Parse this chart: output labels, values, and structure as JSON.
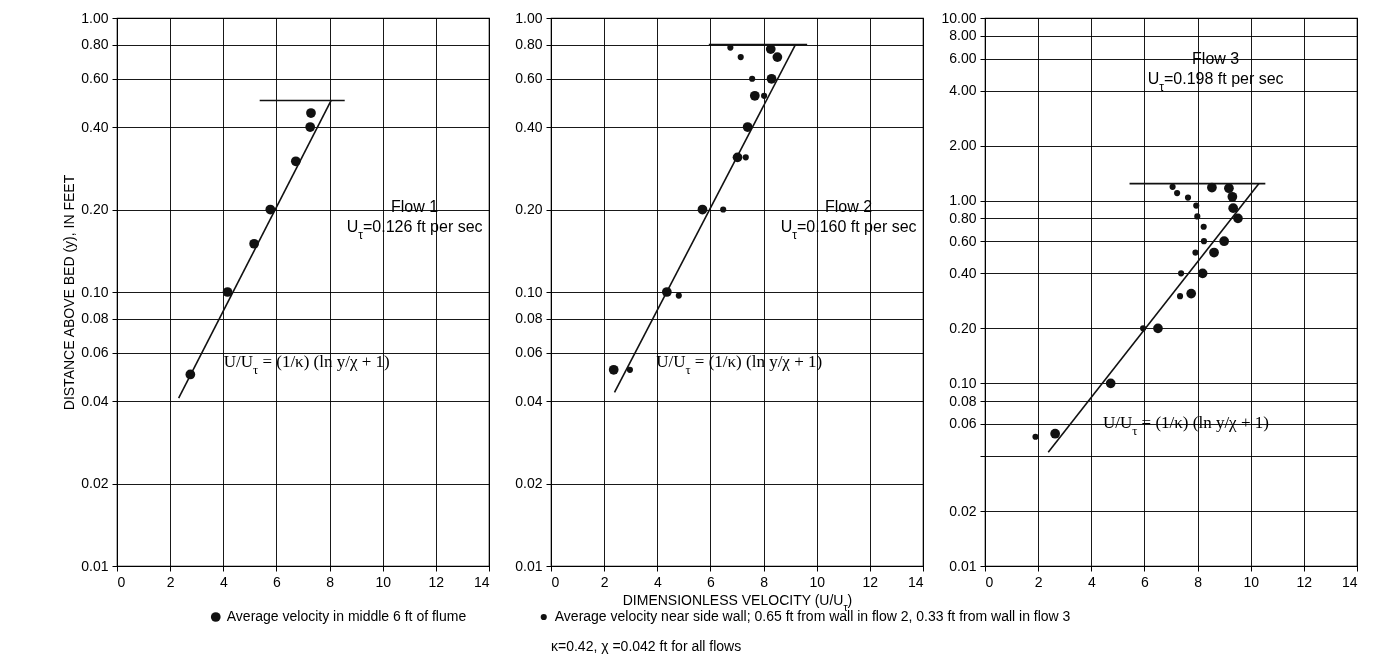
{
  "chart_data": [
    {
      "type": "scatter",
      "title": "Flow 1",
      "subtitle": "U$_{τ}$=0.126 ft per sec",
      "ylabel": "DISTANCE ABOVE BED (y), IN FEET",
      "xlim": [
        0,
        14
      ],
      "xticks": [
        0,
        2,
        4,
        6,
        8,
        10,
        12,
        14
      ],
      "ylim": [
        0.01,
        1
      ],
      "yticks": [
        0.01,
        0.02,
        0.04,
        0.06,
        0.08,
        {
          "value": 0.1,
          "label": "0.10"
        },
        {
          "value": 0.2,
          "label": "0.20"
        },
        {
          "value": 0.4,
          "label": "0.40"
        },
        {
          "value": 0.6,
          "label": "0.60"
        },
        {
          "value": 0.8,
          "label": "0.80"
        },
        {
          "value": 1,
          "label": "1.00"
        }
      ],
      "log": true,
      "grid": true,
      "marker": "circle",
      "annotations": [
        {
          "text": "U/U$_{τ}$ = (1/κ) (ln y/χ + 1)",
          "x": 3.49,
          "y": 0.067
        }
      ],
      "series": [
        {
          "color": "#111111",
          "x": [
            2.76,
            4.16,
            5.16,
            5.77,
            6.73,
            7.27,
            7.3
          ],
          "values": [
            0.05,
            0.1,
            0.15,
            0.2,
            0.3,
            0.4,
            0.45
          ]
        },
        {
          "type": "line",
          "marker": "none",
          "color": "#111111",
          "x": [
            2.32,
            8.06
          ],
          "values": [
            0.041,
            0.5
          ]
        },
        {
          "type": "line",
          "marker": "none",
          "color": "#111111",
          "x": [
            5.37,
            8.57
          ],
          "values": [
            0.5,
            0.5
          ]
        }
      ]
    },
    {
      "type": "scatter",
      "title": "Flow 2",
      "subtitle": "U$_{τ}$=0.160 ft per sec",
      "xlabel": "DIMENSIONLESS VELOCITY (U/U$_{τ}$)",
      "xlim": [
        0,
        14
      ],
      "xticks": [
        0,
        2,
        4,
        6,
        8,
        10,
        12,
        14
      ],
      "ylim": [
        0.01,
        1
      ],
      "yticks": [
        0.01,
        0.02,
        0.04,
        0.06,
        0.08,
        {
          "value": 0.1,
          "label": "0.10"
        },
        {
          "value": 0.2,
          "label": "0.20"
        },
        {
          "value": 0.4,
          "label": "0.40"
        },
        {
          "value": 0.6,
          "label": "0.60"
        },
        {
          "value": 0.8,
          "label": "0.80"
        },
        {
          "value": 1,
          "label": "1.00"
        }
      ],
      "log": true,
      "grid": true,
      "marker": "circle",
      "legend": "bottom",
      "annotations": [
        {
          "text": "U/U$_{τ}$ = (1/κ) (ln y/χ + 1)",
          "x": 3.43,
          "y": 0.067
        },
        "κ=0.42, χ =0.042 ft for all flows"
      ],
      "series": [
        {
          "name": "Average velocity in middle 6 ft of flume",
          "color": "#111111",
          "x": [
            2.36,
            4.36,
            5.7,
            7.02,
            7.4,
            7.67,
            8.3,
            8.52,
            8.27
          ],
          "values": [
            0.052,
            0.1,
            0.2,
            0.31,
            0.4,
            0.52,
            0.6,
            0.72,
            0.77
          ]
        },
        {
          "name": "Average velocity near side wall; 0.65 ft from wall in flow 2,  0.33 ft from wall in flow 3",
          "color": "#111111",
          "x": [
            2.97,
            4.81,
            6.48,
            7.33,
            8.02,
            7.57,
            7.14,
            6.75
          ],
          "values": [
            0.052,
            0.097,
            0.2,
            0.31,
            0.52,
            0.6,
            0.72,
            0.78
          ]
        },
        {
          "type": "line",
          "marker": "none",
          "color": "#111111",
          "x": [
            2.39,
            9.2
          ],
          "values": [
            0.043,
            0.8
          ]
        },
        {
          "type": "line",
          "marker": "none",
          "color": "#111111",
          "x": [
            5.94,
            9.64
          ],
          "values": [
            0.8,
            0.8
          ]
        }
      ]
    },
    {
      "type": "scatter",
      "title": "Flow 3",
      "subtitle": "U$_{τ}$=0.198 ft per sec",
      "xlim": [
        0,
        14
      ],
      "xticks": [
        0,
        2,
        4,
        6,
        8,
        10,
        12,
        14
      ],
      "ylim": [
        0.01,
        10
      ],
      "yticks": [
        0.01,
        0.02,
        {
          "value": 0.04,
          "label": null
        },
        0.06,
        0.08,
        {
          "value": 0.1,
          "label": "0.10"
        },
        {
          "value": 0.2,
          "label": "0.20"
        },
        {
          "value": 0.4,
          "label": "0.40"
        },
        {
          "value": 0.6,
          "label": "0.60"
        },
        {
          "value": 0.8,
          "label": "0.80"
        },
        {
          "value": 1,
          "label": "1.00"
        },
        {
          "value": 2,
          "label": "2.00"
        },
        {
          "value": 4,
          "label": "4.00"
        },
        {
          "value": 6,
          "label": "6.00"
        },
        {
          "value": 8,
          "label": "8.00"
        },
        {
          "value": 10,
          "label": "10.00"
        }
      ],
      "log": true,
      "grid": true,
      "marker": "circle",
      "annotations": [
        {
          "text": "U/U$_{τ}$ = (1/κ) (ln y/χ + 1)",
          "x": 3.91,
          "y": 0.08
        }
      ],
      "series": [
        {
          "color": "#111111",
          "x": [
            2.64,
            4.73,
            6.51,
            7.76,
            8.19,
            8.62,
            9.0,
            9.52,
            9.34,
            9.31,
            9.18,
            8.54
          ],
          "values": [
            0.053,
            0.1,
            0.2,
            0.31,
            0.4,
            0.52,
            0.6,
            0.8,
            0.91,
            1.05,
            1.17,
            1.18
          ]
        },
        {
          "color": "#111111",
          "x": [
            1.9,
            5.95,
            7.34,
            7.38,
            7.92,
            8.24,
            8.23,
            7.99,
            7.95,
            7.64,
            7.23,
            7.06
          ],
          "values": [
            0.051,
            0.2,
            0.3,
            0.4,
            0.52,
            0.6,
            0.72,
            0.82,
            0.94,
            1.04,
            1.1,
            1.19
          ]
        },
        {
          "type": "line",
          "marker": "none",
          "color": "#111111",
          "x": [
            2.38,
            10.31
          ],
          "values": [
            0.042,
            1.24
          ]
        },
        {
          "type": "line",
          "marker": "none",
          "color": "#111111",
          "x": [
            5.44,
            10.55
          ],
          "values": [
            1.24,
            1.24
          ]
        }
      ]
    }
  ]
}
